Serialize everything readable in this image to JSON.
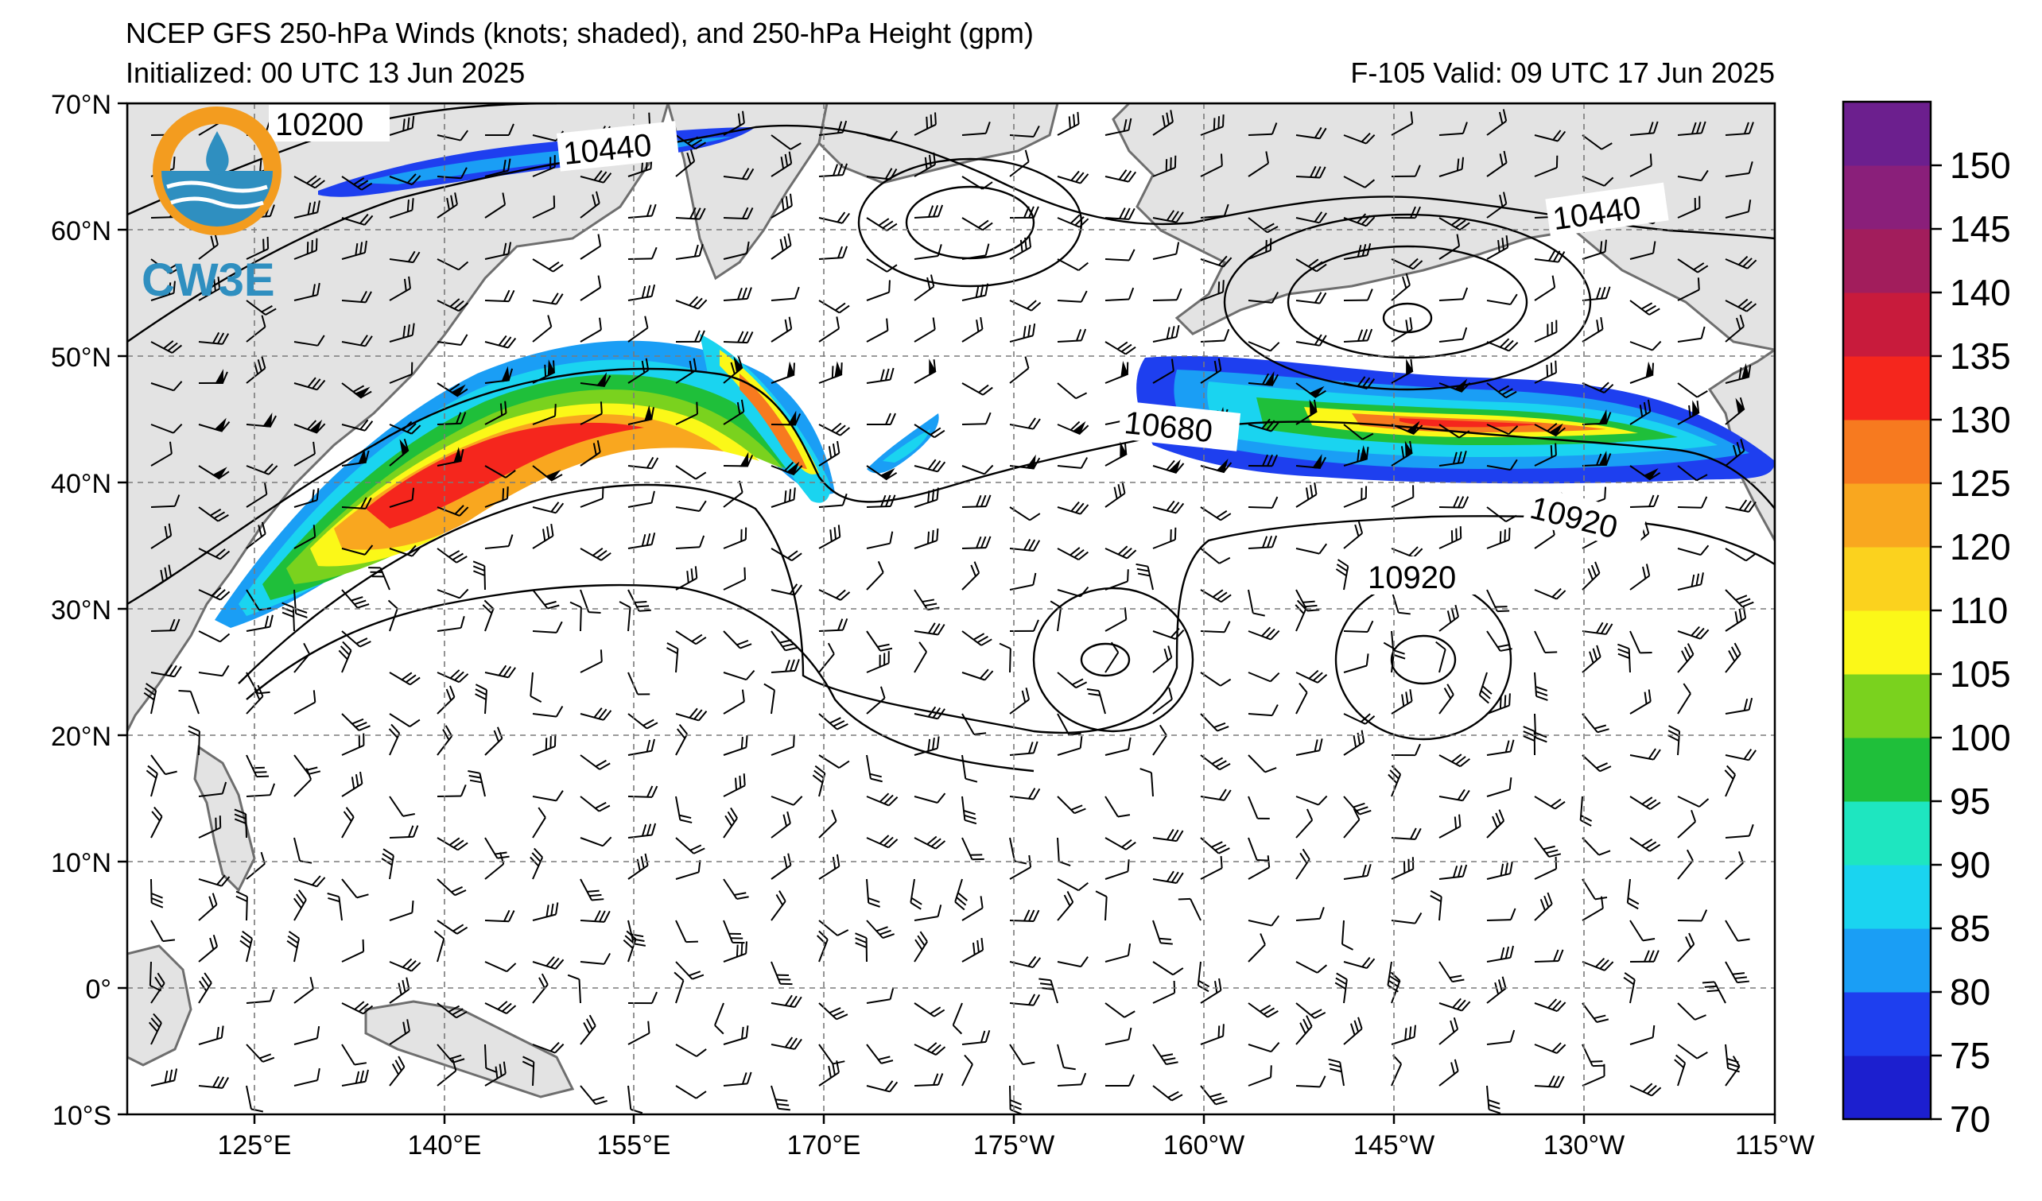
{
  "header": {
    "title": "NCEP GFS 250-hPa Winds (knots; shaded), and 250-hPa Height (gpm)",
    "initialized": "Initialized: 00 UTC 13 Jun 2025",
    "valid": "F-105  Valid: 09 UTC 17 Jun 2025"
  },
  "logo": {
    "text": "CW3E",
    "ring_color": "#f39c1f",
    "wave_color": "#2f8fc0"
  },
  "map": {
    "lat_labels": [
      "70°N",
      "60°N",
      "50°N",
      "40°N",
      "30°N",
      "20°N",
      "10°N",
      "0°",
      "10°S"
    ],
    "lon_labels": [
      "125°E",
      "140°E",
      "155°E",
      "170°E",
      "175°W",
      "160°W",
      "145°W",
      "130°W",
      "115°W"
    ],
    "contour_labels": [
      "10200",
      "10440",
      "10440",
      "10680",
      "10920",
      "10920"
    ],
    "land_color": "#e3e3e3",
    "coast_color": "#6e6e6e"
  },
  "colorbar": {
    "ticks": [
      "70",
      "75",
      "80",
      "85",
      "90",
      "95",
      "100",
      "105",
      "110",
      "120",
      "125",
      "130",
      "135",
      "140",
      "145",
      "150"
    ],
    "colors": [
      "#1c1fcf",
      "#1e3fef",
      "#1a9ef5",
      "#1ad4f0",
      "#1ee6c0",
      "#1fbf3a",
      "#7ad21e",
      "#fbf818",
      "#fbd21e",
      "#f9a71f",
      "#f77a1f",
      "#f5261d",
      "#c81b3c",
      "#a21d5c",
      "#8a1f7a",
      "#6c1f8e"
    ]
  }
}
